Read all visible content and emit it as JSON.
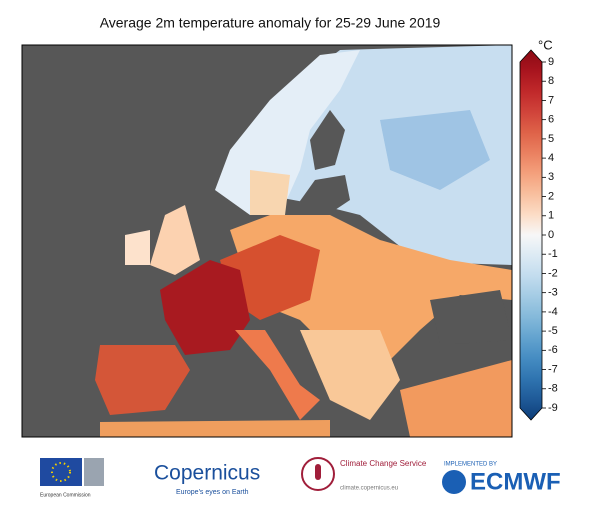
{
  "title": "Average 2m temperature anomaly for 25-29 June 2019",
  "colorbar": {
    "unit": "°C",
    "ticks": [
      9,
      8,
      7,
      6,
      5,
      4,
      3,
      2,
      1,
      0,
      -1,
      -2,
      -3,
      -4,
      -5,
      -6,
      -7,
      -8,
      -9
    ],
    "colors": [
      "#8b0a14",
      "#a8141e",
      "#c0282a",
      "#d0433a",
      "#de6248",
      "#ea8060",
      "#f4a07c",
      "#f8bf9e",
      "#fcdcc6",
      "#f7f7f7",
      "#dceaf4",
      "#c2dcee",
      "#a3cbe4",
      "#84b9da",
      "#63a3cf",
      "#458cc2",
      "#2f74b0",
      "#1f5a98",
      "#0d3d78"
    ]
  },
  "logos": {
    "eu": "European Commission",
    "copernicus": "Copernicus",
    "copernicus_tagline": "Europe's eyes on Earth",
    "c3s": "Climate Change Service",
    "c3s_url": "climate.copernicus.eu",
    "ecmwf_note": "IMPLEMENTED BY",
    "ecmwf": "ECMWF"
  }
}
